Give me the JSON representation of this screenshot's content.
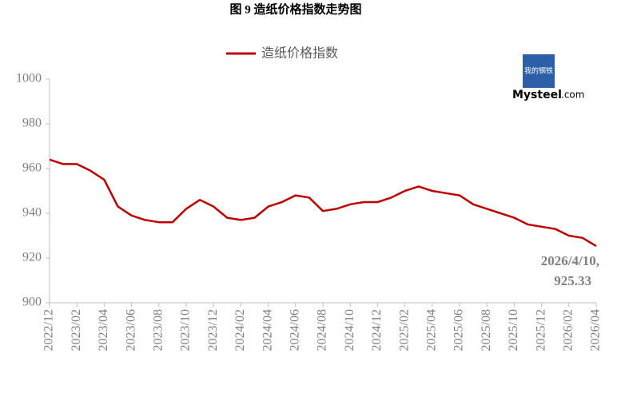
{
  "chart_data": {
    "type": "line",
    "title": "图 9 造纸价格指数走势图",
    "categories": [
      "2022/12",
      null,
      "2023/02",
      null,
      "2023/04",
      null,
      "2023/06",
      null,
      "2023/08",
      null,
      "2023/10",
      null,
      "2023/12",
      null,
      "2024/02",
      null,
      "2024/04",
      null,
      "2024/06",
      null,
      "2024/08",
      null,
      "2024/10",
      null,
      "2024/12",
      null,
      "2025/02",
      null,
      "2025/04",
      null,
      "2025/06",
      null,
      "2025/08",
      null,
      "2025/10",
      null,
      "2025/12",
      null,
      "2026/02",
      null,
      "2026/04"
    ],
    "series": [
      {
        "name": "造纸价格指数",
        "color": "#c00000",
        "values": [
          964,
          962,
          962,
          959,
          955,
          943,
          939,
          937,
          936,
          936,
          942,
          946,
          943,
          938,
          937,
          938,
          943,
          945,
          948,
          947,
          941,
          942,
          944,
          945,
          945,
          947,
          950,
          952,
          950,
          949,
          948,
          944,
          942,
          940,
          938,
          935,
          934,
          933,
          930,
          929,
          925.33
        ]
      }
    ],
    "ylim": [
      900,
      1000
    ],
    "yticks": [
      900,
      920,
      940,
      960,
      980,
      1000
    ],
    "grid": false,
    "annotation": {
      "date": "2026/4/10,",
      "value": "925.33"
    },
    "logo": {
      "cn": "我的钢铁",
      "en": "Mysteel",
      "suffix": ".com"
    }
  }
}
